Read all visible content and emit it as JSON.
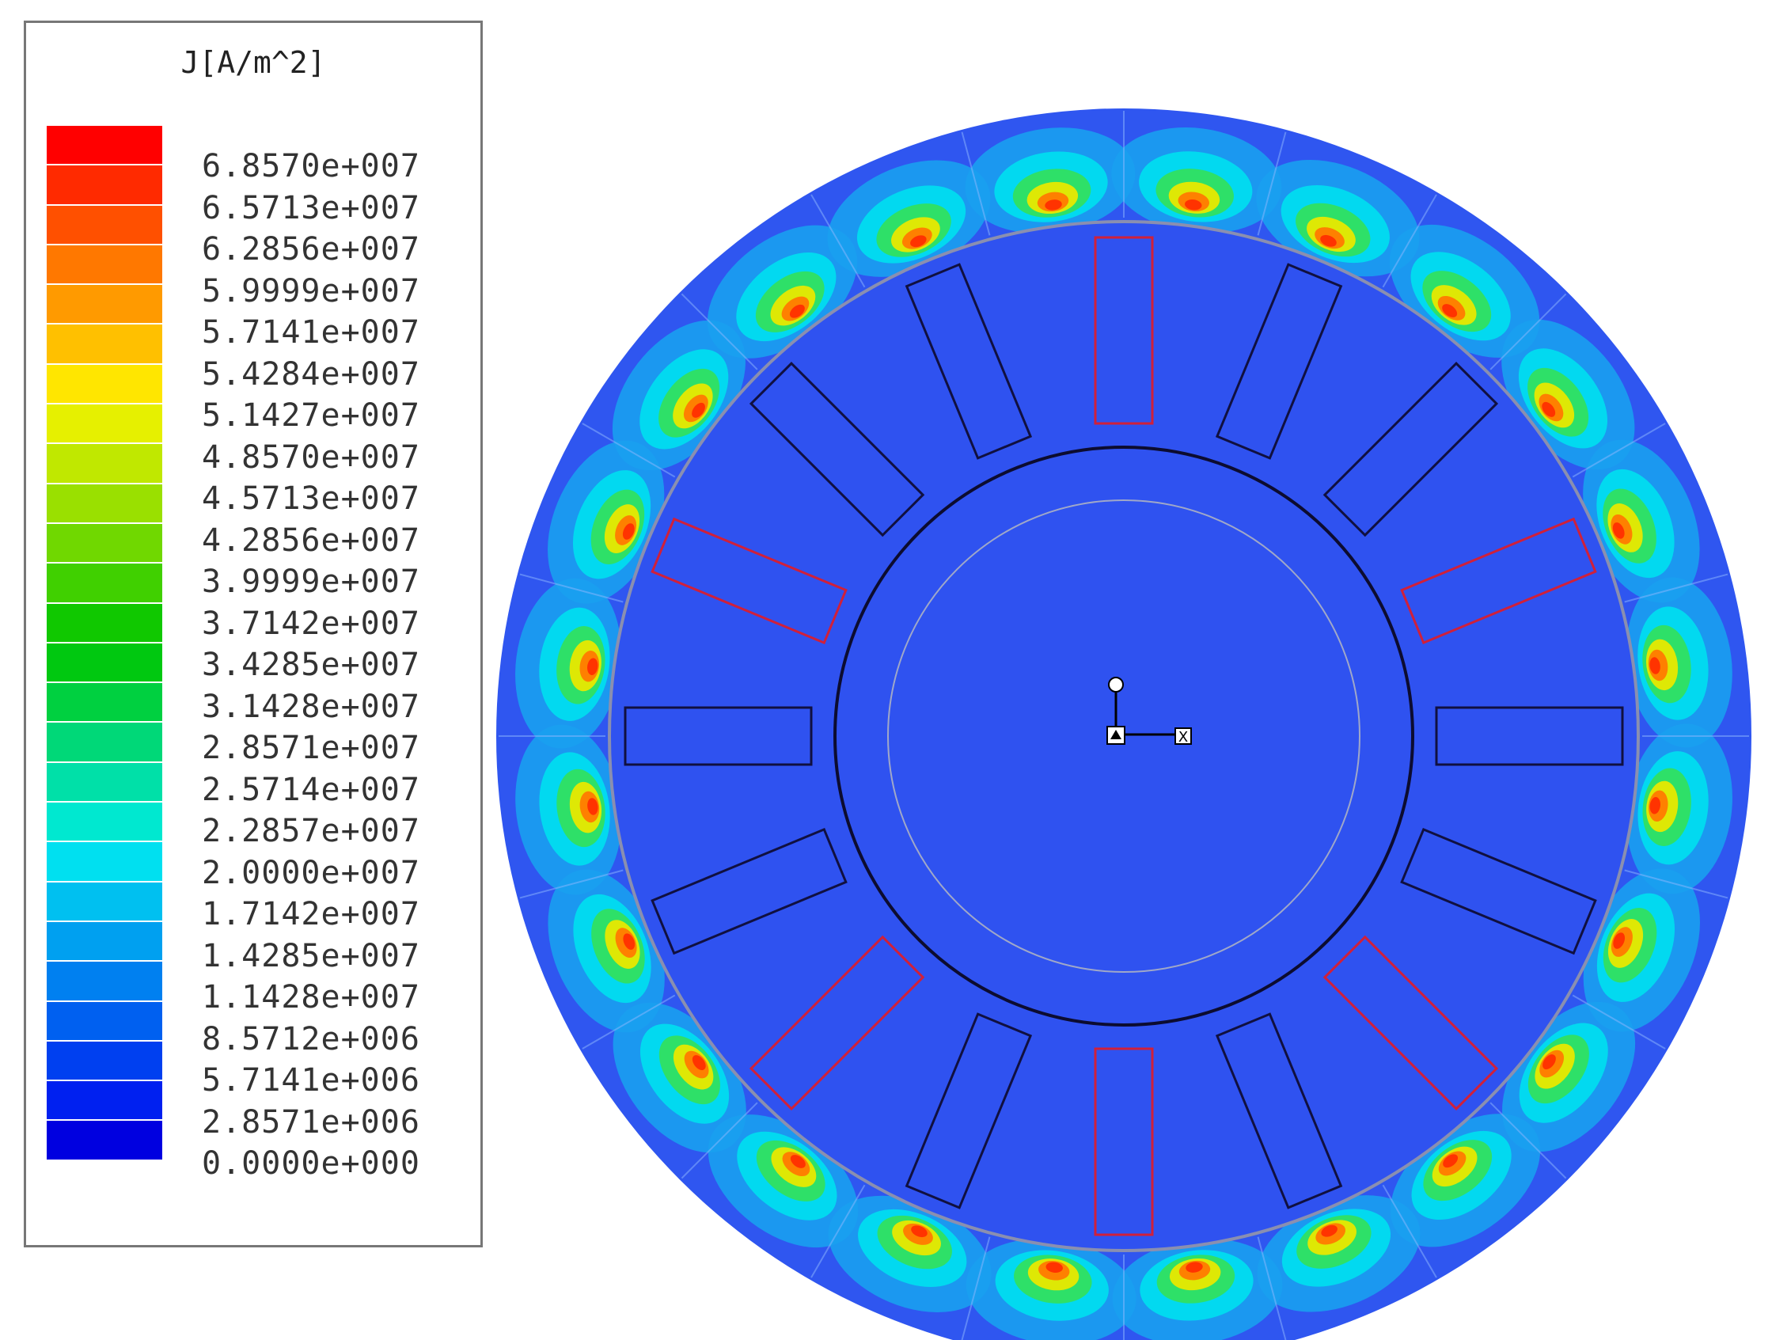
{
  "legend": {
    "title": "J[A/m^2]",
    "colors": [
      "#ff0000",
      "#ff2a00",
      "#ff5000",
      "#ff7800",
      "#ff9a00",
      "#ffc000",
      "#ffe600",
      "#e6f000",
      "#c0e800",
      "#9ae000",
      "#70d800",
      "#40d000",
      "#10c800",
      "#00c810",
      "#00d040",
      "#00d878",
      "#00e0a8",
      "#00e8d0",
      "#00e0f0",
      "#00c0f0",
      "#00a0f0",
      "#0080f0",
      "#0060f0",
      "#0040f0",
      "#0020f0",
      "#0000e0"
    ],
    "labels": [
      "6.8570e+007",
      "6.5713e+007",
      "6.2856e+007",
      "5.9999e+007",
      "5.7141e+007",
      "5.4284e+007",
      "5.1427e+007",
      "4.8570e+007",
      "4.5713e+007",
      "4.2856e+007",
      "3.9999e+007",
      "3.7142e+007",
      "3.4285e+007",
      "3.1428e+007",
      "2.8571e+007",
      "2.5714e+007",
      "2.2857e+007",
      "2.0000e+007",
      "1.7142e+007",
      "1.4285e+007",
      "1.1428e+007",
      "8.5712e+006",
      "5.7141e+006",
      "2.8571e+006",
      "0.0000e+000"
    ]
  },
  "axes": {
    "x_label": "X"
  },
  "colors": {
    "field_background": "#2f52f0",
    "coil_active": "#d0203a",
    "coil_passive": "#101040"
  }
}
